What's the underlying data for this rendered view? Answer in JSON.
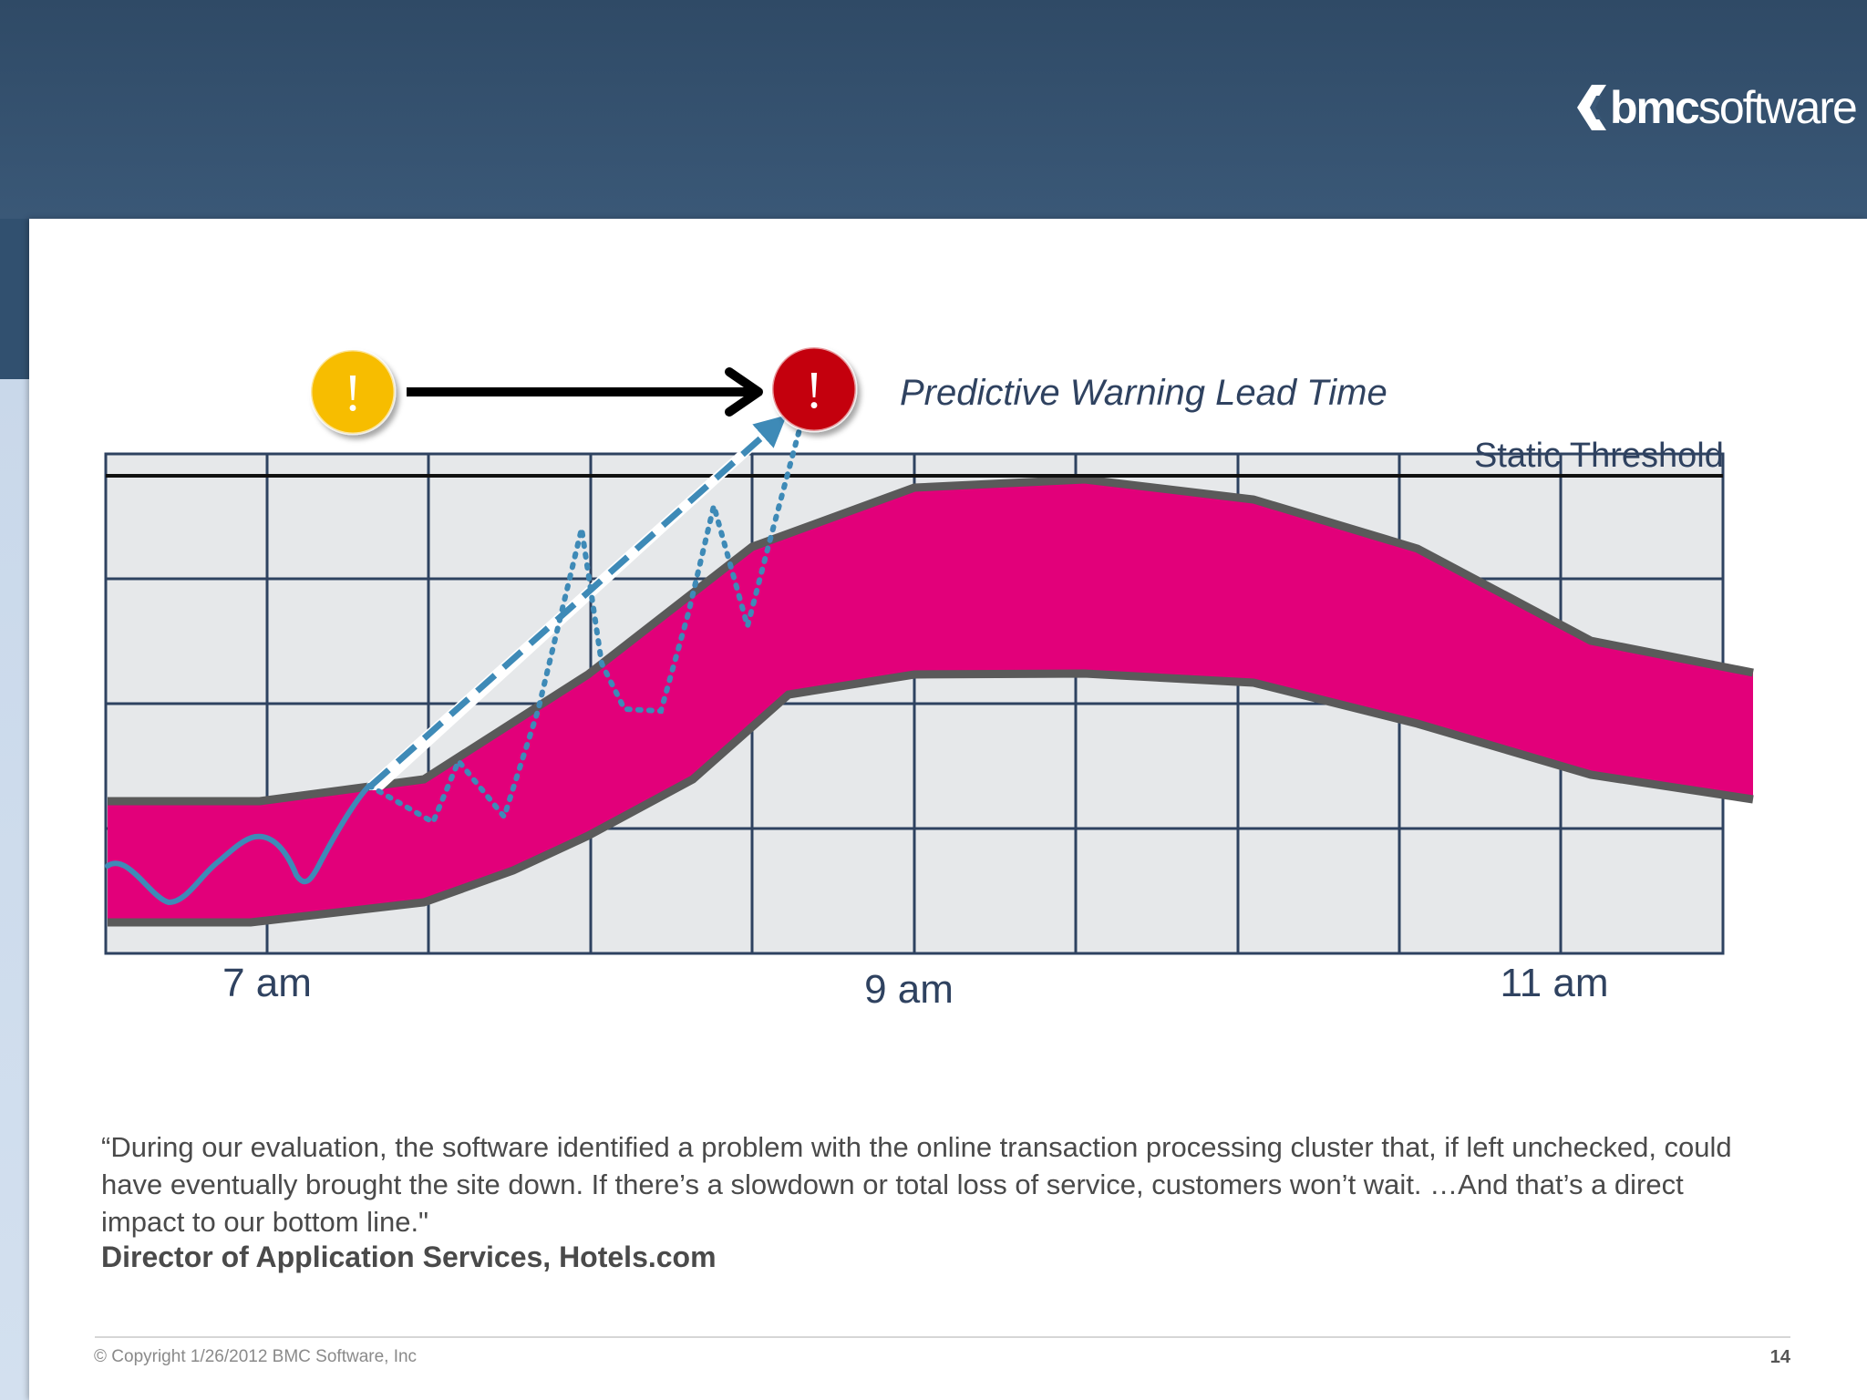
{
  "brand": {
    "logo_bold": "bmc",
    "logo_light": "software"
  },
  "diagram": {
    "lead_time_label": "Predictive Warning Lead Time",
    "threshold_label": "Static Threshold",
    "warning_badge_glyph": "!",
    "alert_badge_glyph": "!",
    "time_labels": [
      "7 am",
      "9 am",
      "11 am"
    ],
    "colors": {
      "band": "#e2007a",
      "band_edge": "#5a5a5a",
      "grid": "#2e4260",
      "grid_fill": "#e6e8ea",
      "metric_line": "#3e8ab7",
      "warning": "#f7bd00",
      "alert": "#c4000c"
    }
  },
  "quote": {
    "text": "“During our evaluation, the software identified a problem with the online transaction processing cluster that, if left unchecked, could have eventually brought the site down. If there’s a slowdown or total loss of service, customers won’t wait. …And that’s a direct impact to our bottom line.\"",
    "attribution": "Director of Application Services, Hotels.com"
  },
  "footer": {
    "copyright": "© Copyright  1/26/2012 BMC Software, Inc",
    "page_number": "14"
  }
}
